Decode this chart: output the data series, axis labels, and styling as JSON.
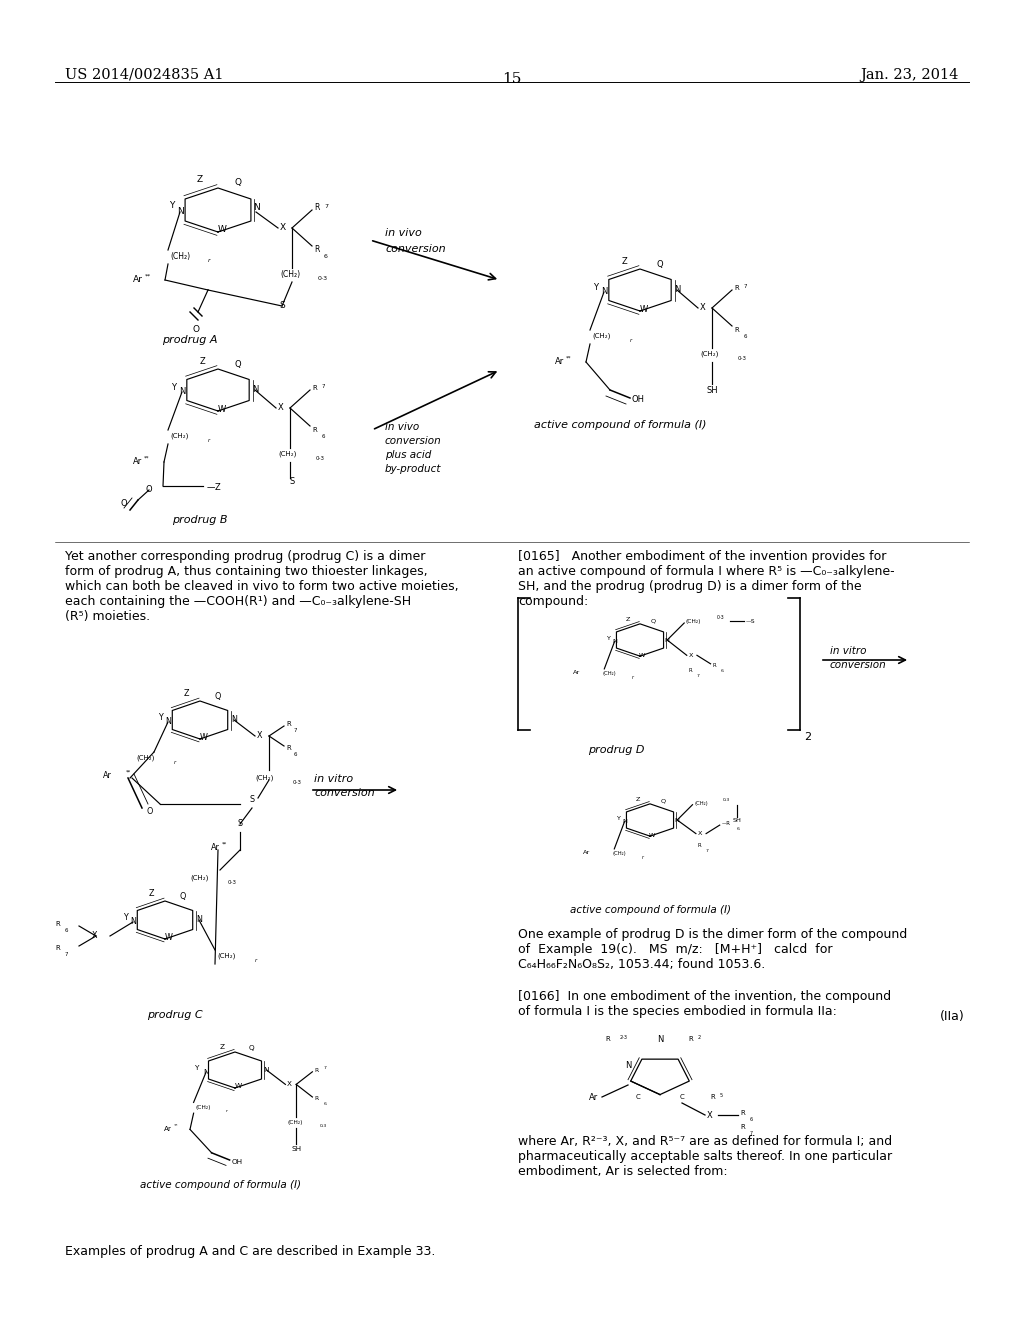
{
  "fig_width": 10.24,
  "fig_height": 13.2,
  "dpi": 100,
  "bg": "#ffffff",
  "header_left": "US 2014/0024835 A1",
  "header_right": "Jan. 23, 2014",
  "page_num": "15",
  "body_font": 9.0,
  "struct_font": 6.0
}
